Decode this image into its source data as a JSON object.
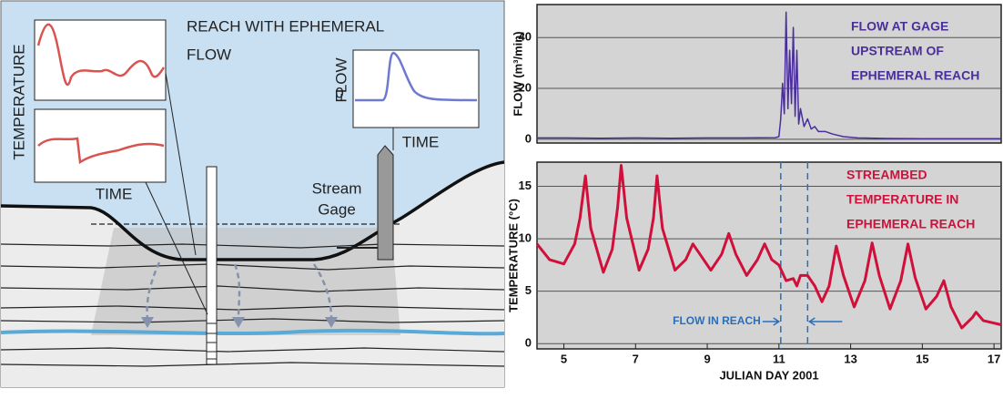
{
  "diagram": {
    "title_lines": [
      "REACH WITH EPHEMERAL",
      "FLOW"
    ],
    "temperature_label": "TEMPERATURE",
    "temperature_time_label": "TIME",
    "flow_label": "FLOW",
    "flow_zero_label": "0",
    "flow_time_label": "TIME",
    "gage_label_lines": [
      "Stream",
      "Gage"
    ]
  },
  "chart_data": [
    {
      "type": "line",
      "ylabel": "FLOW (m³/min)",
      "annotation_lines": [
        "FLOW AT GAGE",
        "UPSTREAM OF",
        "EPHEMERAL REACH"
      ],
      "annotation_color": "#4a2f9a",
      "color": "#4a2f9a",
      "x": [
        4.25,
        5,
        6,
        7,
        8,
        9,
        10,
        10.9,
        11.0,
        11.05,
        11.1,
        11.15,
        11.2,
        11.25,
        11.3,
        11.35,
        11.4,
        11.45,
        11.5,
        11.55,
        11.6,
        11.7,
        11.8,
        11.9,
        12.0,
        12.1,
        12.3,
        12.5,
        12.8,
        13.2,
        14,
        15,
        16,
        17.2
      ],
      "values": [
        0.5,
        0.5,
        0.4,
        0.5,
        0.4,
        0.5,
        0.5,
        0.6,
        1,
        8,
        22,
        10,
        50,
        12,
        35,
        14,
        44,
        9,
        35,
        6,
        12,
        5,
        8,
        4,
        5,
        3,
        3,
        2,
        1,
        0.5,
        0.3,
        0.2,
        0.2,
        0.2
      ],
      "xlim": [
        4.25,
        17.2
      ],
      "ylim": [
        -1.5,
        53
      ],
      "yticks": [
        0,
        20,
        40
      ],
      "grid": true
    },
    {
      "type": "line",
      "xlabel": "JULIAN DAY 2001",
      "ylabel": "TEMPERATURE (°C)",
      "annotation_lines": [
        "STREAMBED",
        "TEMPERATURE IN",
        "EPHEMERAL REACH"
      ],
      "annotation_color": "#d0103a",
      "flow_in_reach_label": "FLOW IN REACH",
      "x_markers": [
        11.05,
        11.8
      ],
      "color": "#d0103a",
      "x": [
        4.25,
        4.6,
        5.0,
        5.3,
        5.45,
        5.6,
        5.75,
        6.1,
        6.35,
        6.5,
        6.6,
        6.75,
        7.1,
        7.35,
        7.5,
        7.6,
        7.75,
        8.1,
        8.4,
        8.6,
        8.8,
        9.1,
        9.4,
        9.6,
        9.8,
        10.1,
        10.4,
        10.6,
        10.8,
        11.0,
        11.2,
        11.4,
        11.5,
        11.6,
        11.8,
        12.0,
        12.2,
        12.4,
        12.6,
        12.8,
        13.1,
        13.4,
        13.6,
        13.8,
        14.1,
        14.4,
        14.6,
        14.8,
        15.1,
        15.4,
        15.6,
        15.8,
        16.1,
        16.4,
        16.5,
        16.7,
        17.2
      ],
      "values": [
        9.5,
        8,
        7.6,
        9.5,
        12,
        16,
        11,
        6.8,
        9,
        13,
        17,
        12,
        7,
        9,
        12,
        16,
        11,
        7,
        8,
        9.5,
        8.5,
        7,
        8.5,
        10.5,
        8.5,
        6.5,
        8,
        9.5,
        8,
        7.5,
        6,
        6.2,
        5.5,
        6.5,
        6.5,
        5.5,
        4,
        5.5,
        9.3,
        6.5,
        3.5,
        6,
        9.6,
        6.5,
        3.3,
        6,
        9.5,
        6.3,
        3.3,
        4.5,
        6,
        3.5,
        1.5,
        2.5,
        3,
        2.2,
        1.8
      ],
      "xlim": [
        4.25,
        17.2
      ],
      "ylim": [
        -0.5,
        17.3
      ],
      "xticks": [
        5,
        7,
        9,
        11,
        13,
        15,
        17
      ],
      "yticks": [
        0,
        5,
        10,
        15
      ],
      "grid": true
    }
  ]
}
